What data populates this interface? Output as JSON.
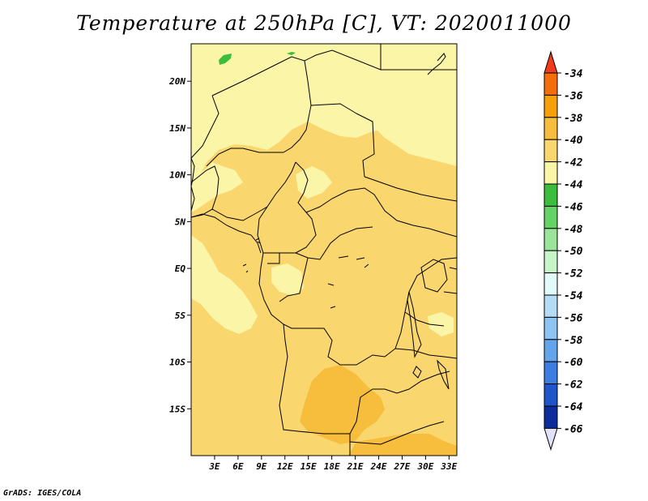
{
  "title": "Temperature at 250hPa [C], VT: 2020011000",
  "credit": "GrADS: IGES/COLA",
  "map": {
    "lon_range_deg": [
      0,
      34
    ],
    "lat_range_deg": [
      -20,
      24
    ],
    "lat_ticks": [
      {
        "value": 20,
        "label": "20N"
      },
      {
        "value": 15,
        "label": "15N"
      },
      {
        "value": 10,
        "label": "10N"
      },
      {
        "value": 5,
        "label": "5N"
      },
      {
        "value": 0,
        "label": "EQ"
      },
      {
        "value": -5,
        "label": "5S"
      },
      {
        "value": -10,
        "label": "10S"
      },
      {
        "value": -15,
        "label": "15S"
      }
    ],
    "lon_ticks": [
      {
        "value": 3,
        "label": "3E"
      },
      {
        "value": 6,
        "label": "6E"
      },
      {
        "value": 9,
        "label": "9E"
      },
      {
        "value": 12,
        "label": "12E"
      },
      {
        "value": 15,
        "label": "15E"
      },
      {
        "value": 18,
        "label": "18E"
      },
      {
        "value": 21,
        "label": "21E"
      },
      {
        "value": 24,
        "label": "24E"
      },
      {
        "value": 27,
        "label": "27E"
      },
      {
        "value": 30,
        "label": "30E"
      },
      {
        "value": 33,
        "label": "33E"
      }
    ]
  },
  "colorbar": {
    "levels": [
      "-34",
      "-36",
      "-38",
      "-40",
      "-42",
      "-44",
      "-46",
      "-48",
      "-50",
      "-52",
      "-54",
      "-56",
      "-58",
      "-60",
      "-62",
      "-64",
      "-66"
    ],
    "colors": [
      "#f03c1e",
      "#f56e0a",
      "#f5a00a",
      "#f7bd3c",
      "#fad76e",
      "#fbf5a7",
      "#3cbe3c",
      "#64d264",
      "#9be59b",
      "#c8f5c8",
      "#e1fafa",
      "#b4dcf5",
      "#8cc3f0",
      "#64a5eb",
      "#3c7de1",
      "#1e55c8",
      "#0a2d9b",
      "#0a0a64",
      "#e1e1fa"
    ]
  },
  "colors": {
    "field_main": "#fad76e",
    "field_light": "#fbf5a7",
    "field_orange": "#f7bd3c",
    "field_green": "#3cbe3c",
    "border": "#000000"
  }
}
